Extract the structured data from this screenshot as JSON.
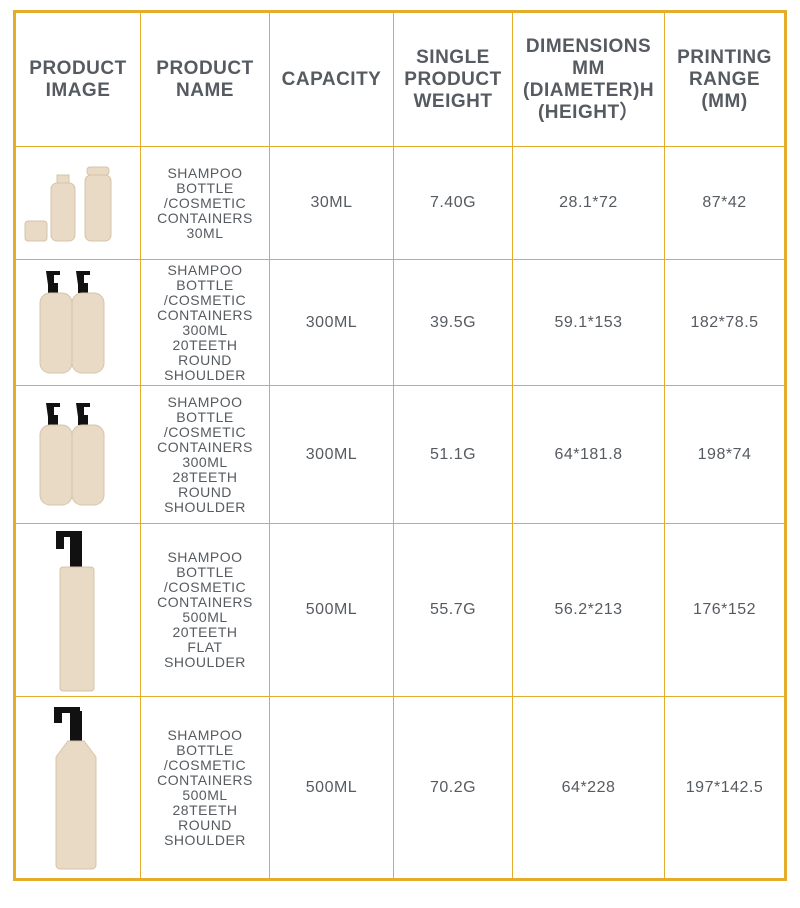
{
  "headers": [
    "PRODUCT IMAGE",
    "PRODUCT NAME",
    "CAPACITY",
    "SINGLE PRODUCT WEIGHT",
    "DIMENSIONS MM (DIAMETER)H (HEIGHT）",
    "PRINTING RANGE (MM)"
  ],
  "colors": {
    "border": "#e3ac2a",
    "text": "#565b61",
    "bottle": "#e8dac4"
  },
  "rows": [
    {
      "image": "30ml-bottles-with-caps",
      "name": "SHAMPOO\nBOTTLE\n/COSMETIC\nCONTAINERS\n30ML",
      "capacity": "30ML",
      "weight": "7.40G",
      "dimensions": "28.1*72",
      "printing": "87*42"
    },
    {
      "image": "300ml-pump-bottles",
      "name": "SHAMPOO\nBOTTLE\n/COSMETIC\nCONTAINERS\n300ML\n20TEETH\nROUND\nSHOULDER",
      "capacity": "300ML",
      "weight": "39.5G",
      "dimensions": "59.1*153",
      "printing": "182*78.5"
    },
    {
      "image": "300ml-pump-bottles",
      "name": "SHAMPOO\nBOTTLE\n/COSMETIC\nCONTAINERS\n300ML\n28TEETH\nROUND\nSHOULDER",
      "capacity": "300ML",
      "weight": "51.1G",
      "dimensions": "64*181.8",
      "printing": "198*74"
    },
    {
      "image": "500ml-flat-pump-bottle",
      "name": "SHAMPOO\nBOTTLE\n/COSMETIC\nCONTAINERS\n500ML\n20TEETH\nFLAT\nSHOULDER",
      "capacity": "500ML",
      "weight": "55.7G",
      "dimensions": "56.2*213",
      "printing": "176*152"
    },
    {
      "image": "500ml-round-pump-bottle",
      "name": "SHAMPOO\nBOTTLE\n/COSMETIC\nCONTAINERS\n500ML\n28TEETH\nROUND\nSHOULDER",
      "capacity": "500ML",
      "weight": "70.2G",
      "dimensions": "64*228",
      "printing": "197*142.5"
    }
  ]
}
